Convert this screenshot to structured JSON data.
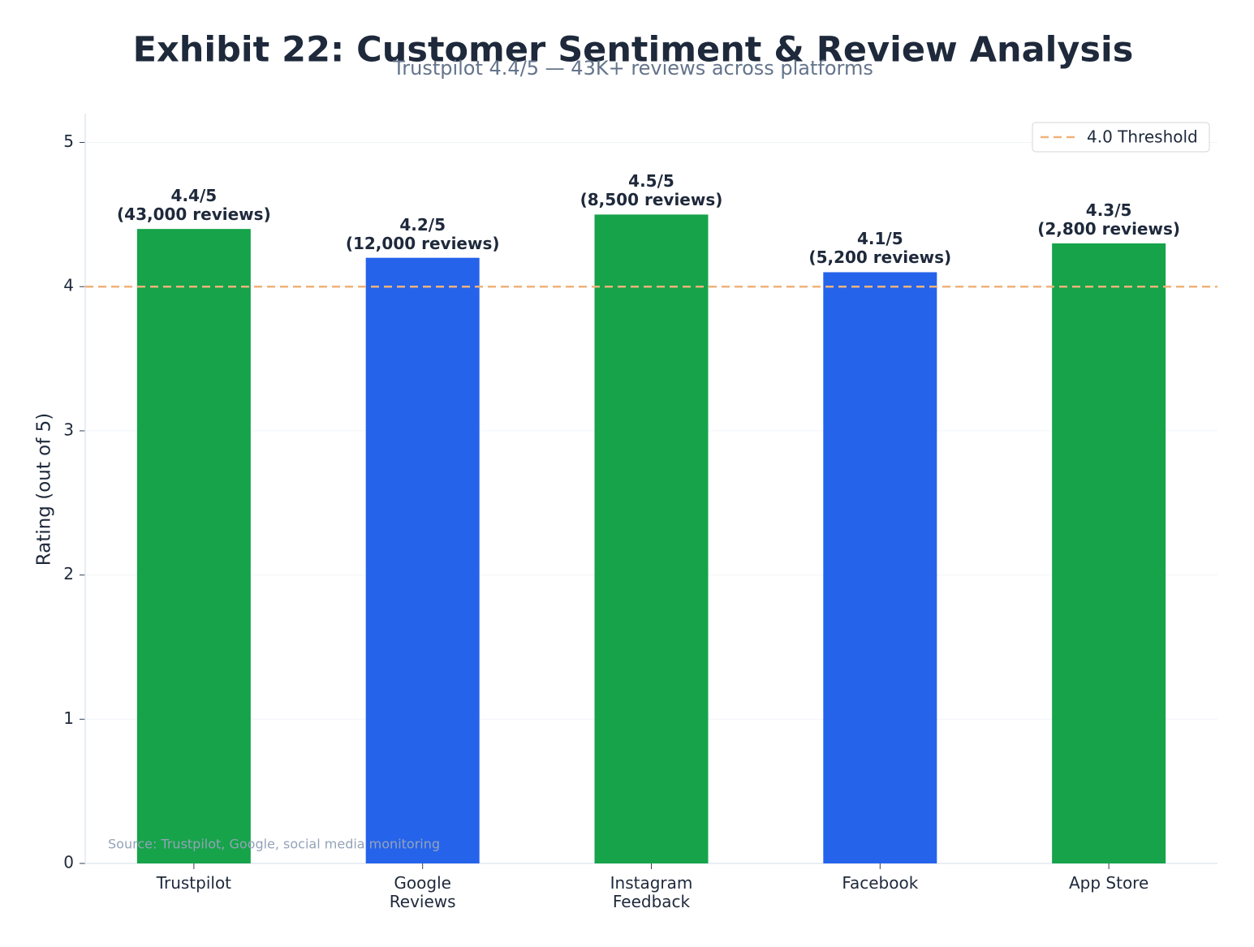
{
  "chart_data": {
    "type": "bar",
    "title": "Exhibit 22: Customer Sentiment & Review Analysis",
    "subtitle": "Trustpilot 4.4/5 — 43K+ reviews across platforms",
    "y_label": "Rating (out of 5)",
    "source": "Source: Trustpilot, Google, social media monitoring",
    "categories": [
      "Trustpilot",
      "Google\nReviews",
      "Instagram\nFeedback",
      "Facebook",
      "App Store"
    ],
    "values": [
      4.4,
      4.2,
      4.5,
      4.1,
      4.3
    ],
    "value_labels": [
      "4.4/5\n(43,000 reviews)",
      "4.2/5\n(12,000 reviews)",
      "4.5/5\n(8,500 reviews)",
      "4.1/5\n(5,200 reviews)",
      "4.3/5\n(2,800 reviews)"
    ],
    "colors": [
      "#16a34a",
      "#2563eb",
      "#16a34a",
      "#2563eb",
      "#16a34a"
    ],
    "threshold": {
      "value": 4,
      "label": "4.0 Threshold",
      "color": "#f0b27a"
    },
    "legend_position": "upper right",
    "ylim": [
      0,
      5.2
    ],
    "yticks": [
      0,
      1,
      2,
      3,
      4,
      5
    ],
    "grid": true
  }
}
